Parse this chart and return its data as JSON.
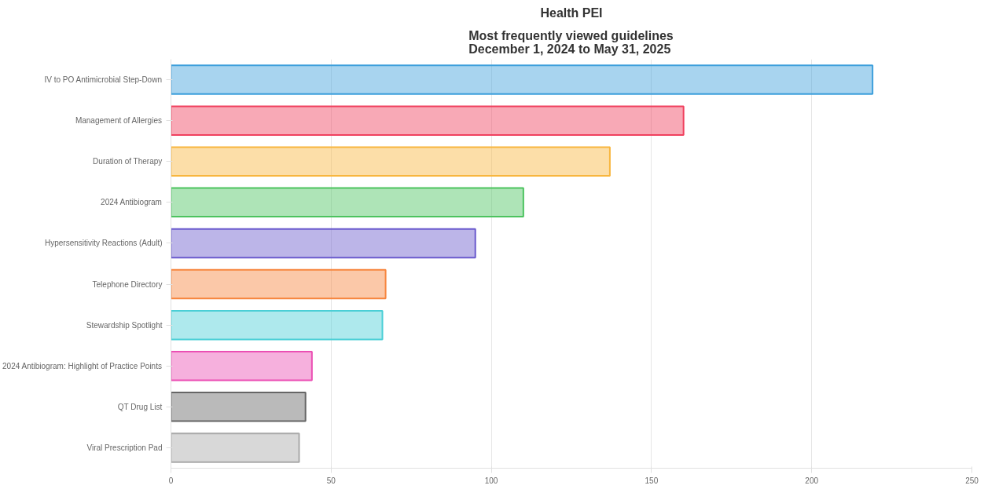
{
  "chart_data": {
    "type": "bar",
    "orientation": "horizontal",
    "title": "Health PEI",
    "subtitle": "Most frequently viewed guidelines\nDecember  1, 2024 to May 31, 2025",
    "categories": [
      "IV to PO Antimicrobial Step-Down",
      "Management of Allergies",
      "Duration of Therapy",
      "2024 Antibiogram",
      "Hypersensitivity Reactions (Adult)",
      "Telephone Directory",
      "Stewardship Spotlight",
      "2024 Antibiogram: Highlight of Practice Points",
      "QT Drug List",
      "Viral Prescription Pad"
    ],
    "values": [
      219,
      160,
      137,
      110,
      95,
      67,
      66,
      44,
      42,
      40
    ],
    "colors": [
      "#3d9fdc",
      "#f0405e",
      "#f8b63e",
      "#4cc35f",
      "#6a5acd",
      "#f7853d",
      "#4bcfd6",
      "#eb4fb4",
      "#666666",
      "#a9a9a9"
    ],
    "xlim": [
      0,
      250
    ],
    "xticks": [
      0,
      50,
      100,
      150,
      200,
      250
    ],
    "grid": "x"
  }
}
